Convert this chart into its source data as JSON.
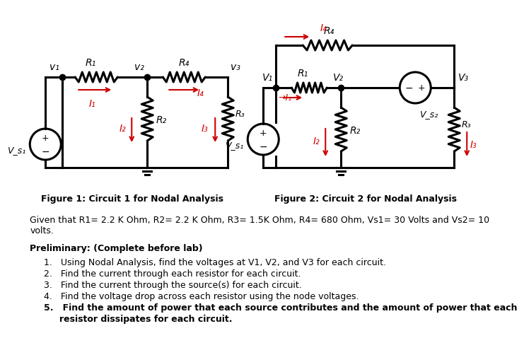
{
  "fig1_caption": "Figure 1: Circuit 1 for Nodal Analysis",
  "fig2_caption": "Figure 2: Circuit 2 for Nodal Analysis",
  "given_line1": "Given that R1= 2.2 K Ohm, R2= 2.2 K Ohm, R3= 1.5K Ohm, R4= 680 Ohm, Vs1= 30 Volts and Vs2= 10",
  "given_line2": "volts.",
  "prelim_title": "Preliminary: (Complete before lab)",
  "items": [
    "Using Nodal Analysis, find the voltages at V1, V2, and V3 for each circuit.",
    "Find the current through each resistor for each circuit.",
    "Find the current through the source(s) for each circuit.",
    "Find the voltage drop across each resistor using the node voltages.",
    "Find the amount of power that each source contributes and the amount of power that each",
    "resistor dissipates for each circuit."
  ],
  "bg_color": "#ffffff",
  "cc": "#000000",
  "rc": "#cc0000",
  "lw": 2.2
}
